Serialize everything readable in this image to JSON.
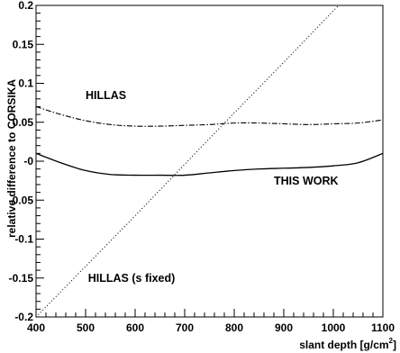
{
  "chart_data": {
    "type": "line",
    "xlabel": "slant depth [g/cm",
    "xlabel_superscript": "2",
    "xlabel_close": "]",
    "ylabel": "relative difference to CORSIKA",
    "xlim": [
      400,
      1100
    ],
    "ylim": [
      -0.2,
      0.2
    ],
    "x_ticks": [
      400,
      500,
      600,
      700,
      800,
      900,
      1000,
      1100
    ],
    "y_ticks": [
      -0.2,
      -0.15,
      -0.1,
      -0.05,
      0,
      0.05,
      0.1,
      0.15,
      0.2
    ],
    "x_tick_labels": [
      "400",
      "500",
      "600",
      "700",
      "800",
      "900",
      "1000",
      "1100"
    ],
    "y_tick_labels": [
      "-0.2",
      "-0.15",
      "-0.1",
      "-0.05",
      "-0",
      "0.05",
      "0.1",
      "0.15",
      "0.2"
    ],
    "grid": false,
    "series": [
      {
        "name": "HILLAS",
        "style": "dash-dot",
        "x": [
          400,
          450,
          500,
          550,
          600,
          650,
          700,
          750,
          800,
          850,
          900,
          950,
          1000,
          1050,
          1100
        ],
        "y": [
          0.07,
          0.06,
          0.052,
          0.047,
          0.045,
          0.045,
          0.046,
          0.047,
          0.049,
          0.049,
          0.048,
          0.047,
          0.048,
          0.049,
          0.053
        ]
      },
      {
        "name": "THIS WORK",
        "style": "solid",
        "x": [
          400,
          450,
          500,
          550,
          600,
          650,
          700,
          750,
          800,
          850,
          900,
          950,
          1000,
          1050,
          1100
        ],
        "y": [
          0.01,
          -0.002,
          -0.012,
          -0.017,
          -0.018,
          -0.018,
          -0.018,
          -0.015,
          -0.012,
          -0.01,
          -0.009,
          -0.008,
          -0.006,
          -0.002,
          0.01
        ]
      },
      {
        "name": "HILLAS (s fixed)",
        "style": "dotted",
        "x": [
          400,
          500,
          600,
          700,
          800,
          900,
          1000,
          1100
        ],
        "y": [
          -0.2,
          -0.135,
          -0.07,
          -0.004,
          0.062,
          0.127,
          0.193,
          0.258
        ]
      }
    ],
    "annotations": [
      {
        "text": "HILLAS",
        "x": 500,
        "y": 0.08
      },
      {
        "text": "THIS WORK",
        "x": 880,
        "y": -0.03
      },
      {
        "text": "HILLAS (s fixed)",
        "x": 505,
        "y": -0.155
      }
    ]
  }
}
